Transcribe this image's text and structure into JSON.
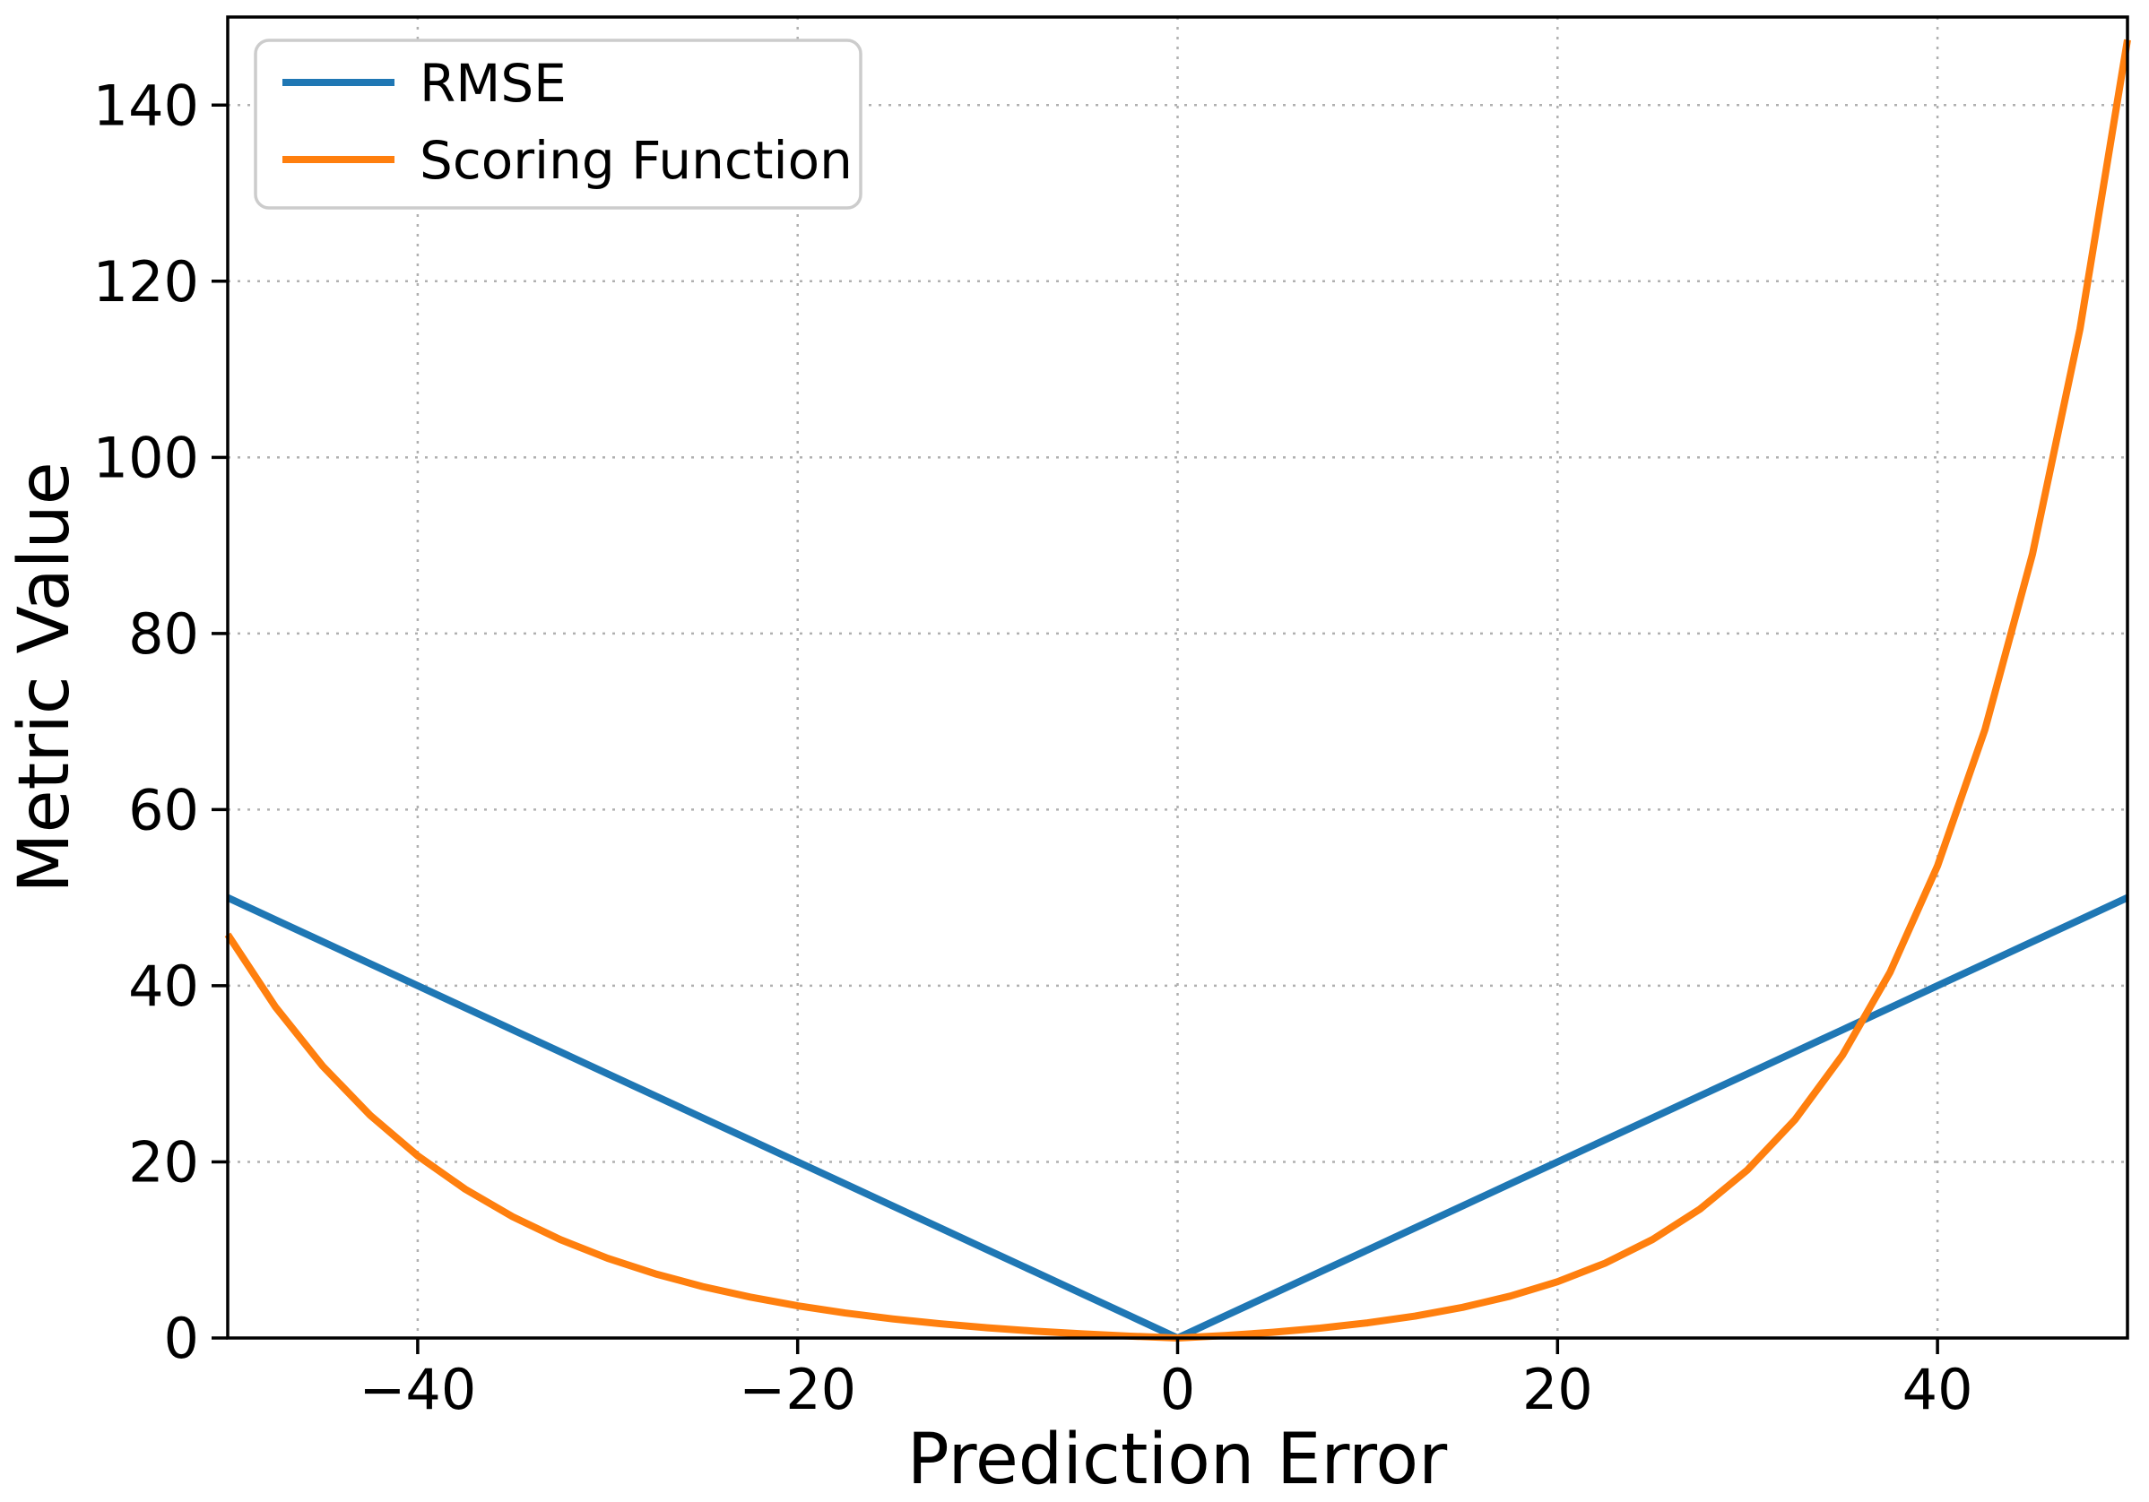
{
  "chart_data": {
    "type": "line",
    "title": "",
    "xlabel": "Prediction Error",
    "ylabel": "Metric Value",
    "xlim": [
      -50,
      50
    ],
    "ylim": [
      0,
      150
    ],
    "xticks": [
      -40,
      -20,
      0,
      20,
      40
    ],
    "yticks": [
      0,
      20,
      40,
      60,
      80,
      100,
      120,
      140
    ],
    "grid": "dotted",
    "grid_color": "#b0b0b0",
    "legend_position": "upper-left",
    "x": [
      -50,
      -47.5,
      -45,
      -42.5,
      -40,
      -37.5,
      -35,
      -32.5,
      -30,
      -27.5,
      -25,
      -22.5,
      -20,
      -17.5,
      -15,
      -12.5,
      -10,
      -7.5,
      -5,
      -2.5,
      0,
      2.5,
      5,
      7.5,
      10,
      12.5,
      15,
      17.5,
      20,
      22.5,
      25,
      27.5,
      30,
      32.5,
      35,
      37.5,
      40,
      42.5,
      45,
      47.5,
      50
    ],
    "series": [
      {
        "name": "RMSE",
        "color": "#1f77b4",
        "values": [
          50,
          47.5,
          45,
          42.5,
          40,
          37.5,
          35,
          32.5,
          30,
          27.5,
          25,
          22.5,
          20,
          17.5,
          15,
          12.5,
          10,
          7.5,
          5,
          2.5,
          0,
          2.5,
          5,
          7.5,
          10,
          12.5,
          15,
          17.5,
          20,
          22.5,
          25,
          27.5,
          30,
          32.5,
          35,
          37.5,
          40,
          42.5,
          45,
          47.5,
          50
        ]
      },
      {
        "name": "Scoring Function",
        "color": "#ff7f0e",
        "values": [
          45.81,
          37.63,
          30.87,
          25.29,
          20.69,
          16.9,
          13.77,
          11.18,
          9.05,
          7.29,
          5.84,
          4.65,
          3.66,
          2.84,
          2.17,
          1.62,
          1.16,
          0.78,
          0.47,
          0.21,
          0,
          0.28,
          0.65,
          1.12,
          1.72,
          2.49,
          3.48,
          4.75,
          6.39,
          8.49,
          11.18,
          14.64,
          19.09,
          24.79,
          32.12,
          41.52,
          53.6,
          69.11,
          89.02,
          114.58,
          147.41
        ]
      }
    ]
  }
}
